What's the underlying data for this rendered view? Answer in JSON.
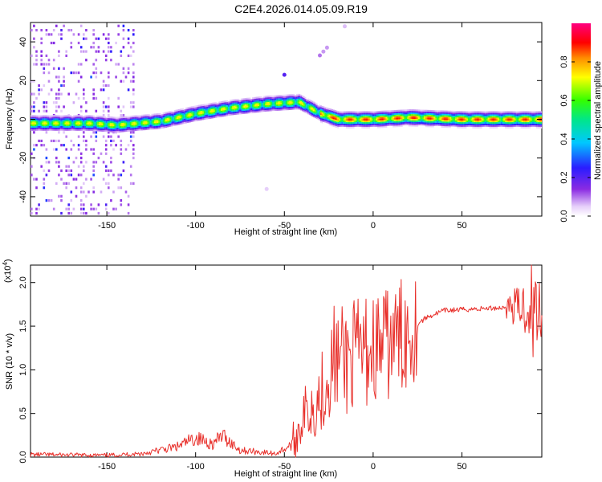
{
  "title": "C2E4.2026.014.05.09.R19",
  "colors": {
    "snr_line": "#e8302b",
    "spectral_palette": [
      "#ffffff",
      "#f0e4fb",
      "#8a2be2",
      "#3a00ff",
      "#00c8ff",
      "#00ff66",
      "#ffff00",
      "#ff8000",
      "#ff0000",
      "#ff00ff"
    ]
  },
  "chart_data": [
    {
      "type": "heatmap",
      "ylabel": "Frequency (Hz)",
      "xlabel": "Height of straight line (km)",
      "xlim": [
        -193,
        95
      ],
      "ylim": [
        -50,
        50
      ],
      "x_ticks": [
        -150,
        -100,
        -50,
        0,
        50
      ],
      "x_tick_labels": [
        "-150",
        "-100",
        "-50",
        "0",
        "50"
      ],
      "y_ticks": [
        -40,
        -20,
        0,
        20,
        40
      ],
      "y_tick_labels": [
        "-40",
        "-20",
        "0",
        "20",
        "40"
      ],
      "grid": false,
      "ridge": [
        {
          "x": -193,
          "y": -2
        },
        {
          "x": -160,
          "y": -2
        },
        {
          "x": -145,
          "y": -3
        },
        {
          "x": -120,
          "y": -1
        },
        {
          "x": -100,
          "y": 3
        },
        {
          "x": -80,
          "y": 6
        },
        {
          "x": -60,
          "y": 8
        },
        {
          "x": -42,
          "y": 9
        },
        {
          "x": -30,
          "y": 3
        },
        {
          "x": -20,
          "y": 0
        },
        {
          "x": 0,
          "y": 0
        },
        {
          "x": 20,
          "y": 1
        },
        {
          "x": 50,
          "y": 0
        },
        {
          "x": 95,
          "y": 0
        }
      ],
      "colorbar": {
        "label": "Normalized spectral amplitude",
        "range": [
          0,
          1
        ],
        "ticks": [
          0.0,
          0.2,
          0.4,
          0.6,
          0.8
        ],
        "tick_labels": [
          "0.0",
          "0.2",
          "0.4",
          "0.6",
          "0.8"
        ]
      }
    },
    {
      "type": "line",
      "ylabel": "SNR (10 * v/v)",
      "scale_note": "(x10",
      "scale_exp": "4",
      "scale_close": ")",
      "xlabel": "Height of straight line (km)",
      "xlim": [
        -193,
        95
      ],
      "ylim": [
        0,
        2.2
      ],
      "x_ticks": [
        -150,
        -100,
        -50,
        0,
        50
      ],
      "x_tick_labels": [
        "-150",
        "-100",
        "-50",
        "0",
        "50"
      ],
      "y_ticks": [
        0.0,
        0.5,
        1.0,
        1.5,
        2.0
      ],
      "y_tick_labels": [
        "0.0",
        "0.5",
        "1.0",
        "1.5",
        "2.0"
      ],
      "grid": false,
      "series": [
        {
          "envelope": [
            {
              "x": -193,
              "y": 0.03
            },
            {
              "x": -150,
              "y": 0.02
            },
            {
              "x": -130,
              "y": 0.04
            },
            {
              "x": -110,
              "y": 0.12
            },
            {
              "x": -100,
              "y": 0.22
            },
            {
              "x": -90,
              "y": 0.15
            },
            {
              "x": -85,
              "y": 0.25
            },
            {
              "x": -75,
              "y": 0.08
            },
            {
              "x": -55,
              "y": 0.04
            },
            {
              "x": -45,
              "y": 0.15
            },
            {
              "x": -40,
              "y": 0.45
            },
            {
              "x": -30,
              "y": 0.7
            },
            {
              "x": -22,
              "y": 1.1
            },
            {
              "x": -10,
              "y": 1.15
            },
            {
              "x": 0,
              "y": 1.25
            },
            {
              "x": 10,
              "y": 1.3
            },
            {
              "x": 20,
              "y": 1.45
            },
            {
              "x": 30,
              "y": 1.6
            },
            {
              "x": 40,
              "y": 1.68
            },
            {
              "x": 60,
              "y": 1.7
            },
            {
              "x": 80,
              "y": 1.72
            },
            {
              "x": 95,
              "y": 1.72
            }
          ],
          "annotated_peaks": [
            {
              "x": -22,
              "y": 1.73
            },
            {
              "x": 11,
              "y": 1.2
            },
            {
              "x": 89,
              "y": 2.2
            },
            {
              "x": 90,
              "y": 1.15
            }
          ]
        }
      ]
    }
  ]
}
